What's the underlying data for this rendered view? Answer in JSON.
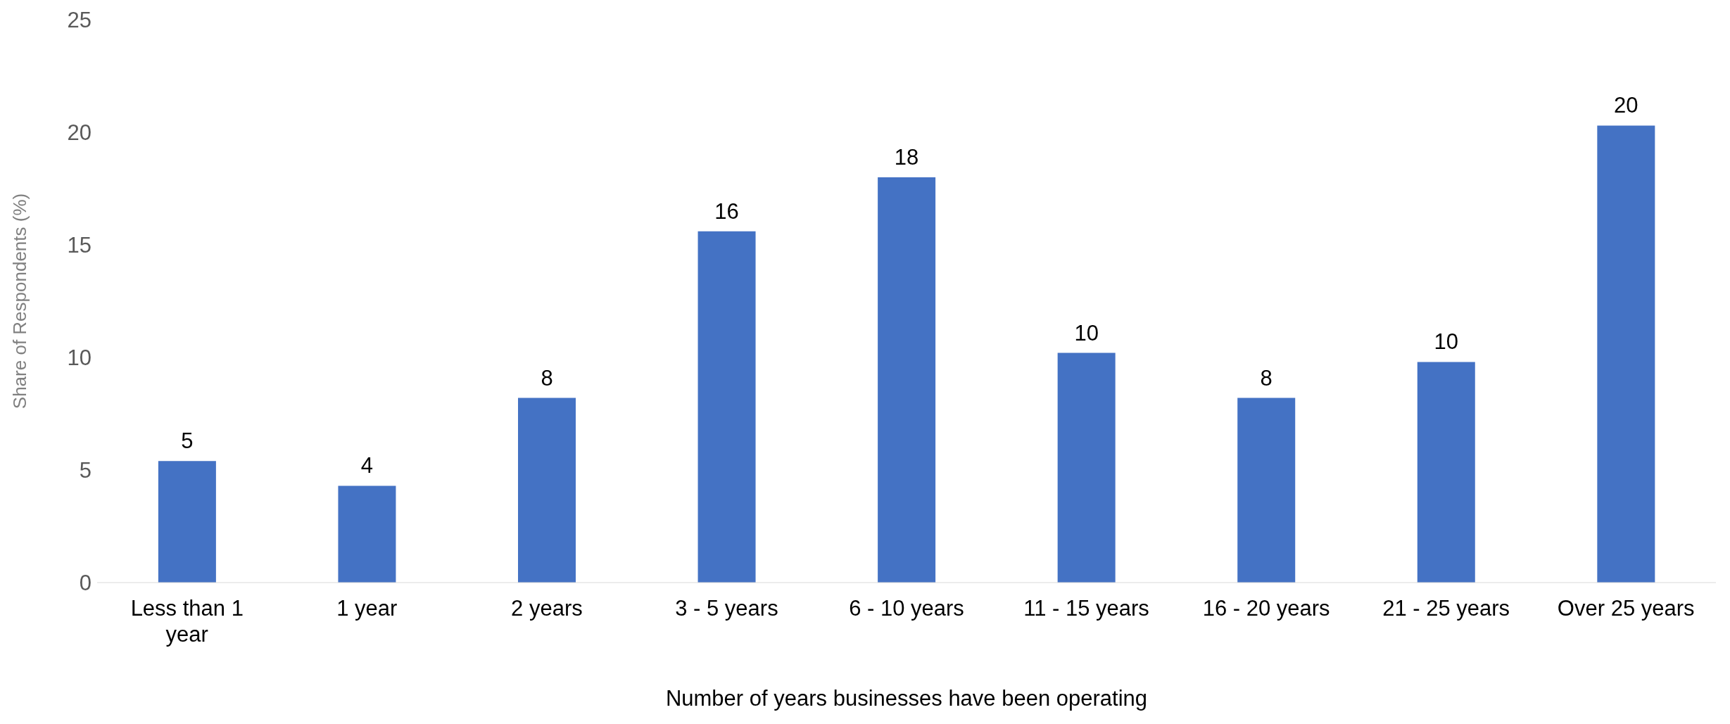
{
  "chart_data": {
    "type": "bar",
    "xlabel": "Number of years businesses have been operating",
    "ylabel": "Share of Respondents (%)",
    "categories": [
      "Less than 1 year",
      "1 year",
      "2 years",
      "3 - 5 years",
      "6 - 10 years",
      "11 - 15 years",
      "16 - 20 years",
      "21 - 25 years",
      "Over 25 years"
    ],
    "values": [
      5.4,
      4.3,
      8.2,
      15.6,
      18.0,
      10.2,
      8.2,
      9.8,
      20.3
    ],
    "value_labels": [
      "5",
      "4",
      "8",
      "16",
      "18",
      "10",
      "8",
      "10",
      "20"
    ],
    "color": "#4472c4",
    "ylim": [
      0,
      25
    ],
    "yticks": [
      0,
      5,
      10,
      15,
      20,
      25
    ],
    "grid": false,
    "legend": false
  }
}
